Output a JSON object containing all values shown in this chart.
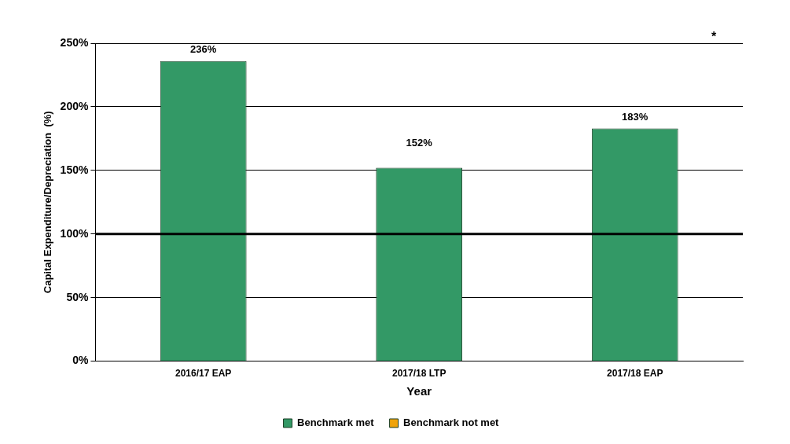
{
  "chart_data": {
    "type": "bar",
    "xlabel": "Year",
    "ylabel": "Capital Expenditure/Depreciation  (%)",
    "categories": [
      "2016/17 EAP",
      "2017/18 LTP",
      "2017/18 EAP"
    ],
    "series": [
      {
        "name": "Benchmark met",
        "color": "#339966",
        "values": [
          236,
          152,
          183
        ],
        "value_labels": [
          "236%",
          "152%",
          "183%"
        ]
      },
      {
        "name": "Benchmark not met",
        "color": "#f0a30a",
        "values": [
          null,
          null,
          null
        ]
      }
    ],
    "ylim": [
      0,
      250
    ],
    "yticks": [
      {
        "value": 0,
        "label": "0%"
      },
      {
        "value": 50,
        "label": "50%"
      },
      {
        "value": 100,
        "label": "100%"
      },
      {
        "value": 150,
        "label": "150%"
      },
      {
        "value": 200,
        "label": "200%"
      },
      {
        "value": 250,
        "label": "250%"
      }
    ],
    "grid": "y",
    "legend": "bottom",
    "ref_lines": [
      {
        "axis": "y",
        "value": 100,
        "color": "#000000"
      }
    ],
    "annotations": [
      {
        "text": "*"
      }
    ]
  }
}
